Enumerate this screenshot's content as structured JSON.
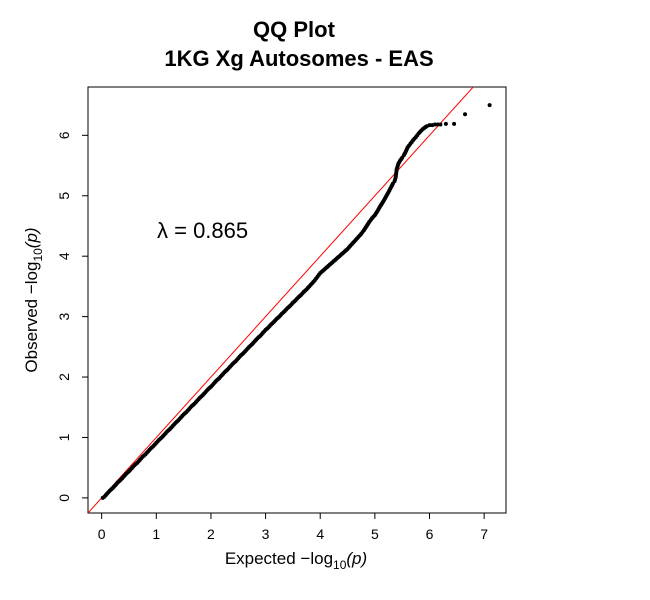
{
  "chart_data": {
    "type": "scatter",
    "title": "QQ Plot",
    "subtitle": "1KG Xg Autosomes - EAS",
    "xlabel": {
      "prefix": "Expected  −log",
      "sub": "10",
      "suffix": "(p)"
    },
    "ylabel": {
      "prefix": "Observed  −log",
      "sub": "10",
      "suffix": "(p)"
    },
    "xlim": [
      -0.25,
      7.4
    ],
    "ylim": [
      -0.25,
      6.8
    ],
    "xticks": [
      0,
      1,
      2,
      3,
      4,
      5,
      6,
      7
    ],
    "yticks": [
      0,
      1,
      2,
      3,
      4,
      5,
      6
    ],
    "annotation": "λ = 0.865",
    "reference_line": {
      "slope": 1,
      "intercept": 0,
      "color": "#ff0000"
    },
    "point_color": "#000000",
    "grid": false,
    "legend": "none",
    "points": [
      [
        0.02,
        0.0
      ],
      [
        0.05,
        0.02
      ],
      [
        0.1,
        0.07
      ],
      [
        0.15,
        0.12
      ],
      [
        0.2,
        0.16
      ],
      [
        0.25,
        0.21
      ],
      [
        0.3,
        0.26
      ],
      [
        0.35,
        0.3
      ],
      [
        0.4,
        0.35
      ],
      [
        0.45,
        0.4
      ],
      [
        0.5,
        0.44
      ],
      [
        0.55,
        0.49
      ],
      [
        0.6,
        0.54
      ],
      [
        0.65,
        0.58
      ],
      [
        0.7,
        0.63
      ],
      [
        0.75,
        0.68
      ],
      [
        0.8,
        0.72
      ],
      [
        0.85,
        0.77
      ],
      [
        0.9,
        0.82
      ],
      [
        0.95,
        0.86
      ],
      [
        1.0,
        0.91
      ],
      [
        1.05,
        0.96
      ],
      [
        1.1,
        1.0
      ],
      [
        1.15,
        1.05
      ],
      [
        1.2,
        1.1
      ],
      [
        1.25,
        1.14
      ],
      [
        1.3,
        1.19
      ],
      [
        1.35,
        1.24
      ],
      [
        1.4,
        1.28
      ],
      [
        1.45,
        1.33
      ],
      [
        1.5,
        1.38
      ],
      [
        1.55,
        1.42
      ],
      [
        1.6,
        1.47
      ],
      [
        1.65,
        1.52
      ],
      [
        1.7,
        1.56
      ],
      [
        1.75,
        1.61
      ],
      [
        1.8,
        1.66
      ],
      [
        1.85,
        1.7
      ],
      [
        1.9,
        1.75
      ],
      [
        1.95,
        1.8
      ],
      [
        2.0,
        1.84
      ],
      [
        2.05,
        1.89
      ],
      [
        2.1,
        1.94
      ],
      [
        2.15,
        1.98
      ],
      [
        2.2,
        2.03
      ],
      [
        2.25,
        2.08
      ],
      [
        2.3,
        2.12
      ],
      [
        2.35,
        2.17
      ],
      [
        2.4,
        2.22
      ],
      [
        2.45,
        2.26
      ],
      [
        2.5,
        2.31
      ],
      [
        2.55,
        2.36
      ],
      [
        2.6,
        2.4
      ],
      [
        2.65,
        2.45
      ],
      [
        2.7,
        2.5
      ],
      [
        2.75,
        2.54
      ],
      [
        2.8,
        2.59
      ],
      [
        2.85,
        2.64
      ],
      [
        2.9,
        2.68
      ],
      [
        2.95,
        2.73
      ],
      [
        3.0,
        2.78
      ],
      [
        3.05,
        2.82
      ],
      [
        3.1,
        2.87
      ],
      [
        3.15,
        2.91
      ],
      [
        3.2,
        2.96
      ],
      [
        3.25,
        3.0
      ],
      [
        3.3,
        3.05
      ],
      [
        3.35,
        3.09
      ],
      [
        3.4,
        3.14
      ],
      [
        3.45,
        3.18
      ],
      [
        3.5,
        3.23
      ],
      [
        3.55,
        3.27
      ],
      [
        3.6,
        3.32
      ],
      [
        3.65,
        3.36
      ],
      [
        3.7,
        3.41
      ],
      [
        3.75,
        3.45
      ],
      [
        3.8,
        3.5
      ],
      [
        3.85,
        3.55
      ],
      [
        3.9,
        3.6
      ],
      [
        3.95,
        3.66
      ],
      [
        4.0,
        3.72
      ],
      [
        4.05,
        3.76
      ],
      [
        4.1,
        3.8
      ],
      [
        4.15,
        3.84
      ],
      [
        4.2,
        3.88
      ],
      [
        4.25,
        3.92
      ],
      [
        4.3,
        3.96
      ],
      [
        4.35,
        4.0
      ],
      [
        4.4,
        4.04
      ],
      [
        4.45,
        4.08
      ],
      [
        4.5,
        4.12
      ],
      [
        4.55,
        4.17
      ],
      [
        4.6,
        4.22
      ],
      [
        4.65,
        4.27
      ],
      [
        4.7,
        4.32
      ],
      [
        4.75,
        4.37
      ],
      [
        4.8,
        4.43
      ],
      [
        4.85,
        4.5
      ],
      [
        4.9,
        4.57
      ],
      [
        4.95,
        4.63
      ],
      [
        5.0,
        4.68
      ],
      [
        5.05,
        4.75
      ],
      [
        5.1,
        4.83
      ],
      [
        5.15,
        4.9
      ],
      [
        5.2,
        4.98
      ],
      [
        5.25,
        5.06
      ],
      [
        5.3,
        5.15
      ],
      [
        5.33,
        5.2
      ],
      [
        5.36,
        5.24
      ],
      [
        5.38,
        5.3
      ],
      [
        5.4,
        5.44
      ],
      [
        5.43,
        5.53
      ],
      [
        5.46,
        5.58
      ],
      [
        5.5,
        5.63
      ],
      [
        5.53,
        5.67
      ],
      [
        5.56,
        5.72
      ],
      [
        5.6,
        5.8
      ],
      [
        5.65,
        5.86
      ],
      [
        5.7,
        5.92
      ],
      [
        5.75,
        5.97
      ],
      [
        5.8,
        6.03
      ],
      [
        5.85,
        6.08
      ],
      [
        5.9,
        6.12
      ],
      [
        5.95,
        6.15
      ],
      [
        6.0,
        6.17
      ],
      [
        6.05,
        6.17
      ],
      [
        6.1,
        6.18
      ],
      [
        6.15,
        6.18
      ],
      [
        6.2,
        6.18
      ],
      [
        6.3,
        6.19
      ],
      [
        6.45,
        6.19
      ],
      [
        6.65,
        6.35
      ],
      [
        7.1,
        6.5
      ]
    ]
  }
}
